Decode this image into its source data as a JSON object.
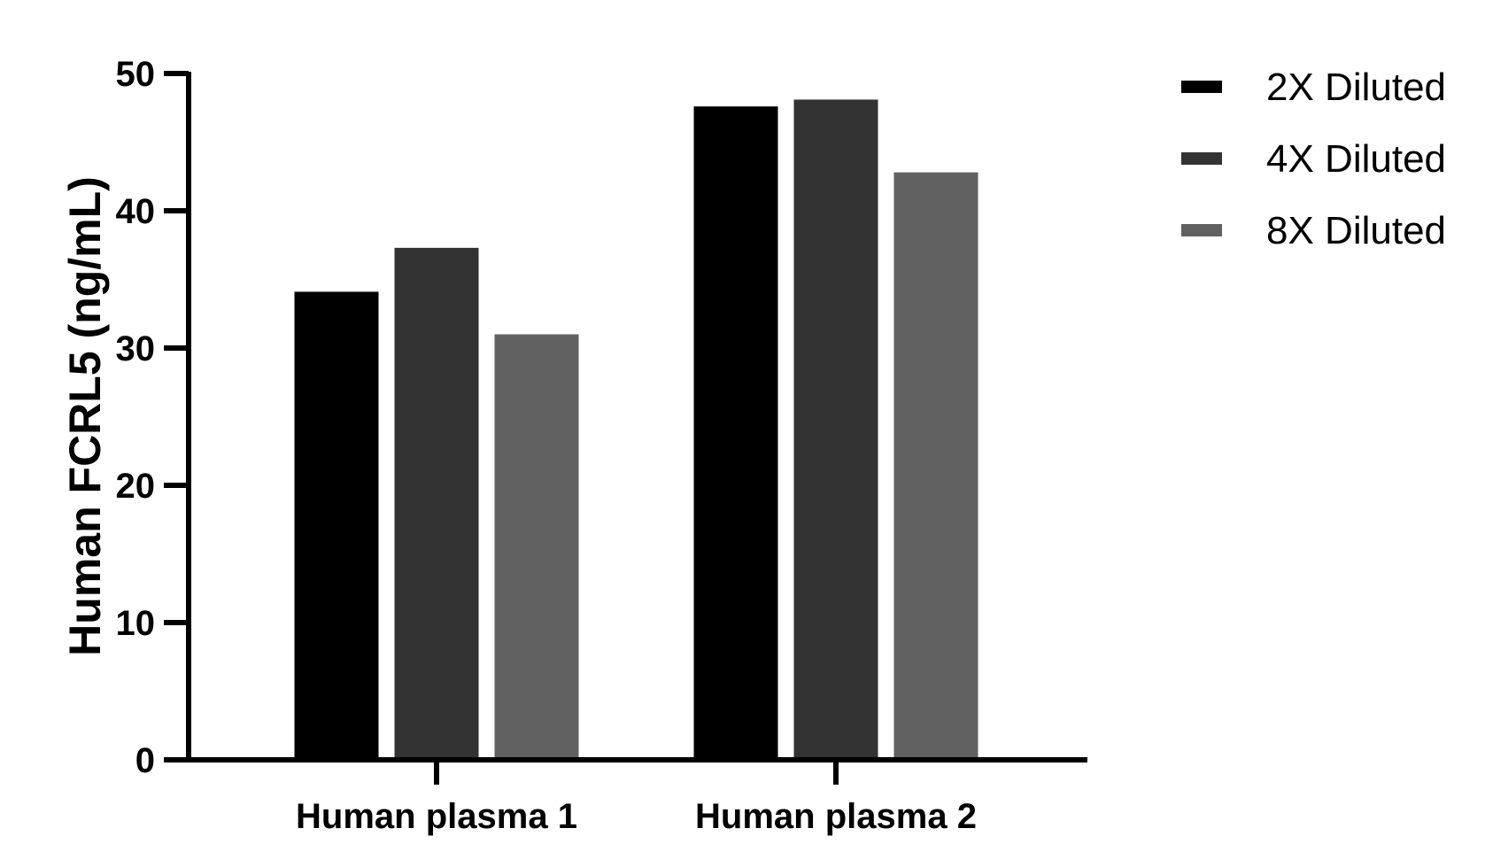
{
  "chart_data": {
    "type": "bar",
    "title": "",
    "xlabel": "",
    "ylabel": "Human FCRL5 (ng/mL)",
    "ylim": [
      0,
      50
    ],
    "yticks": [
      0,
      10,
      20,
      30,
      40,
      50
    ],
    "grid": false,
    "legend_position": "top-right",
    "categories": [
      "Human plasma 1",
      "Human plasma 2"
    ],
    "series": [
      {
        "name": "2X Diluted",
        "color": "#000000",
        "values": [
          34.1,
          47.6
        ]
      },
      {
        "name": "4X Diluted",
        "color": "#333333",
        "values": [
          37.3,
          48.1
        ]
      },
      {
        "name": "8X Diluted",
        "color": "#616161",
        "values": [
          31.0,
          42.8
        ]
      }
    ]
  }
}
